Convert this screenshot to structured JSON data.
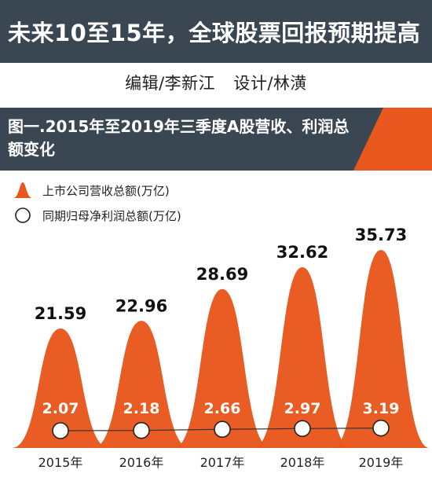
{
  "header": {
    "title": "未来10至15年，全球股票回报预期提高"
  },
  "credits": {
    "editor": "编辑/李新江",
    "designer": "设计/林潢"
  },
  "colors": {
    "dark": "#3a4651",
    "accent": "#e8571d",
    "accent_light": "#f48a3a"
  },
  "chart_data": {
    "type": "area",
    "title": "图一.2015年至2019年三季度A股营收、利润总额变化",
    "categories": [
      "2015年",
      "2016年",
      "2017年",
      "2018年",
      "2019年"
    ],
    "series": [
      {
        "name": "上市公司营收总额(万亿)",
        "values": [
          21.59,
          22.96,
          28.69,
          32.62,
          35.73
        ],
        "labels": [
          "21.59",
          "22.96",
          "28.69",
          "32.62",
          "35.73"
        ],
        "shape": "bell-curve"
      },
      {
        "name": "同期归母净利润总额(万亿)",
        "values": [
          2.07,
          2.18,
          2.66,
          2.97,
          3.19
        ],
        "labels": [
          "2.07",
          "2.18",
          "2.66",
          "2.97",
          "3.19"
        ],
        "shape": "circle-marker"
      }
    ],
    "legend": "top-left",
    "grid": false
  }
}
